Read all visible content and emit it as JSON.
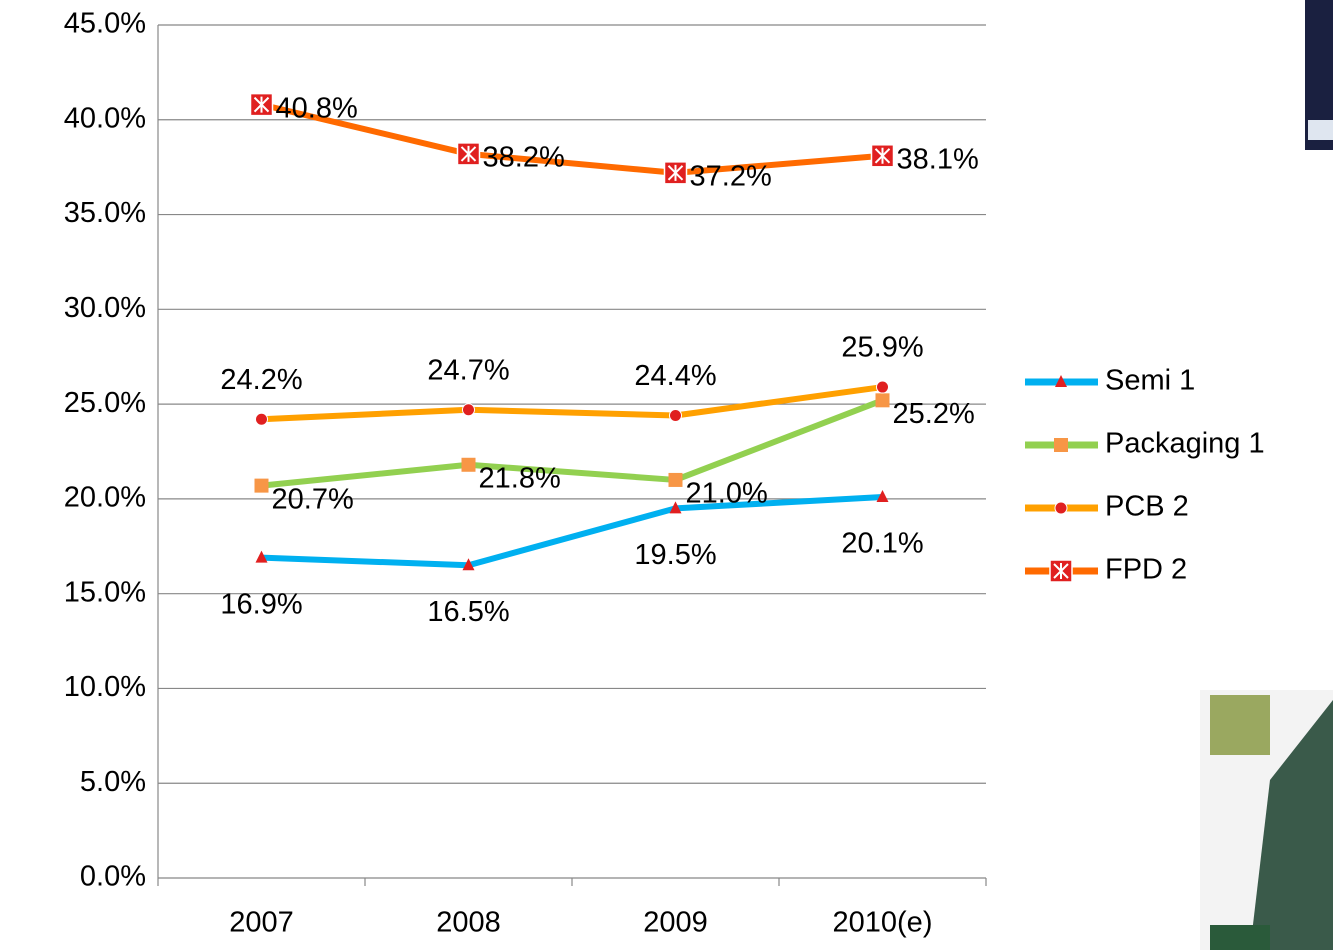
{
  "chart_data": {
    "type": "line",
    "categories": [
      "2007",
      "2008",
      "2009",
      "2010(e)"
    ],
    "series": [
      {
        "name": "Semi 1",
        "color": "#00b0f0",
        "marker": "triangle",
        "marker_color": "#e02020",
        "values": [
          16.9,
          16.5,
          19.5,
          20.1
        ],
        "value_labels": [
          "16.9%",
          "16.5%",
          "19.5%",
          "20.1%"
        ]
      },
      {
        "name": "Packaging 1",
        "color": "#92d050",
        "marker": "square",
        "marker_color": "#f79646",
        "values": [
          20.7,
          21.8,
          21.0,
          25.2
        ],
        "value_labels": [
          "20.7%",
          "21.8%",
          "21.0%",
          "25.2%"
        ]
      },
      {
        "name": "PCB  2",
        "color": "#ffa000",
        "marker": "circle",
        "marker_color": "#e02020",
        "values": [
          24.2,
          24.7,
          24.4,
          25.9
        ],
        "value_labels": [
          "24.2%",
          "24.7%",
          "24.4%",
          "25.9%"
        ]
      },
      {
        "name": "FPD  2",
        "color": "#ff6a00",
        "marker": "xsquare",
        "marker_color": "#e02020",
        "values": [
          40.8,
          38.2,
          37.2,
          38.1
        ],
        "value_labels": [
          "40.8%",
          "38.2%",
          "37.2%",
          "38.1%"
        ]
      }
    ],
    "ylim": [
      0,
      45
    ],
    "yticks": [
      {
        "value": 0,
        "label": "0.0%"
      },
      {
        "value": 5,
        "label": "5.0%"
      },
      {
        "value": 10,
        "label": "10.0%"
      },
      {
        "value": 15,
        "label": "15.0%"
      },
      {
        "value": 20,
        "label": "20.0%"
      },
      {
        "value": 25,
        "label": "25.0%"
      },
      {
        "value": 30,
        "label": "30.0%"
      },
      {
        "value": 35,
        "label": "35.0%"
      },
      {
        "value": 40,
        "label": "40.0%"
      },
      {
        "value": 45,
        "label": "45.0%"
      }
    ],
    "grid": true,
    "legend": "right"
  }
}
